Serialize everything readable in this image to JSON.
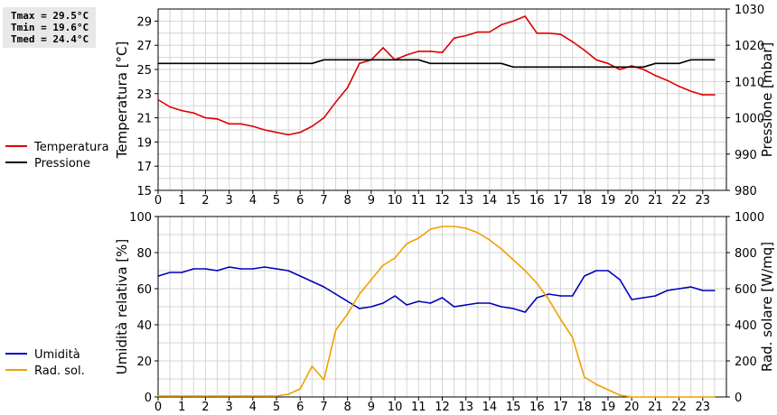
{
  "stats": {
    "tmax": "Tmax = 29.5°C",
    "tmin": "Tmin = 19.6°C",
    "tmed": "Tmed = 24.4°C"
  },
  "colors": {
    "temperature": "#dd0000",
    "pressure": "#000000",
    "humidity": "#0000bb",
    "solar": "#f0a000",
    "grid": "#d4d4d4"
  },
  "chart_data": [
    {
      "type": "line",
      "x_ticks": [
        "0",
        "1",
        "2",
        "3",
        "4",
        "5",
        "6",
        "7",
        "8",
        "9",
        "10",
        "11",
        "12",
        "13",
        "14",
        "15",
        "16",
        "17",
        "18",
        "19",
        "20",
        "21",
        "22",
        "23"
      ],
      "xlim": [
        0,
        24
      ],
      "ylabel": "Temperatura [°C]",
      "y2label": "Pressione [mbar]",
      "ylim": [
        15,
        30
      ],
      "y_ticks": [
        "15",
        "17",
        "19",
        "21",
        "23",
        "25",
        "27",
        "29"
      ],
      "y2lim": [
        980,
        1030
      ],
      "y2_ticks": [
        "980",
        "990",
        "1000",
        "1010",
        "1020",
        "1030"
      ],
      "grid": true,
      "legend_position": "left",
      "series": [
        {
          "name": "Temperatura",
          "axis": "left",
          "x": [
            0,
            0.5,
            1,
            1.5,
            2,
            2.5,
            3,
            3.5,
            4,
            4.5,
            5,
            5.5,
            6,
            6.5,
            7,
            7.5,
            8,
            8.5,
            9,
            9.5,
            10,
            10.5,
            11,
            11.5,
            12,
            12.5,
            13,
            13.5,
            14,
            14.5,
            15,
            15.5,
            16,
            16.5,
            17,
            17.5,
            18,
            18.5,
            19,
            19.5,
            20,
            20.5,
            21,
            21.5,
            22,
            22.5,
            23,
            23.5
          ],
          "values": [
            22.5,
            21.9,
            21.6,
            21.4,
            21.0,
            20.9,
            20.5,
            20.5,
            20.3,
            20.0,
            19.8,
            19.6,
            19.8,
            20.3,
            21.0,
            22.3,
            23.5,
            25.5,
            25.8,
            26.8,
            25.8,
            26.2,
            26.5,
            26.5,
            26.4,
            27.6,
            27.8,
            28.1,
            28.1,
            28.7,
            29.0,
            29.4,
            28.0,
            28.0,
            27.9,
            27.3,
            26.6,
            25.8,
            25.5,
            25.0,
            25.3,
            25.0,
            24.5,
            24.1,
            23.6,
            23.2,
            22.9,
            22.9
          ]
        },
        {
          "name": "Pressione",
          "axis": "right",
          "x": [
            0,
            0.5,
            1,
            1.5,
            2,
            2.5,
            3,
            3.5,
            4,
            4.5,
            5,
            5.5,
            6,
            6.5,
            7,
            7.5,
            8,
            8.5,
            9,
            9.5,
            10,
            10.5,
            11,
            11.5,
            12,
            12.5,
            13,
            13.5,
            14,
            14.5,
            15,
            15.5,
            16,
            16.5,
            17,
            17.5,
            18,
            18.5,
            19,
            19.5,
            20,
            20.5,
            21,
            21.5,
            22,
            22.5,
            23,
            23.5
          ],
          "values": [
            1015,
            1015,
            1015,
            1015,
            1015,
            1015,
            1015,
            1015,
            1015,
            1015,
            1015,
            1015,
            1015,
            1015,
            1016,
            1016,
            1016,
            1016,
            1016,
            1016,
            1016,
            1016,
            1016,
            1015,
            1015,
            1015,
            1015,
            1015,
            1015,
            1015,
            1014,
            1014,
            1014,
            1014,
            1014,
            1014,
            1014,
            1014,
            1014,
            1014,
            1014,
            1014,
            1015,
            1015,
            1015,
            1016,
            1016,
            1016
          ]
        }
      ]
    },
    {
      "type": "line",
      "x_ticks": [
        "0",
        "1",
        "2",
        "3",
        "4",
        "5",
        "6",
        "7",
        "8",
        "9",
        "10",
        "11",
        "12",
        "13",
        "14",
        "15",
        "16",
        "17",
        "18",
        "19",
        "20",
        "21",
        "22",
        "23"
      ],
      "xlim": [
        0,
        24
      ],
      "ylabel": "Umidità relativa [%]",
      "y2label": "Rad. solare [W/mq]",
      "ylim": [
        0,
        100
      ],
      "y_ticks": [
        "0",
        "20",
        "40",
        "60",
        "80",
        "100"
      ],
      "y2lim": [
        0,
        1000
      ],
      "y2_ticks": [
        "0",
        "200",
        "400",
        "600",
        "800",
        "1000"
      ],
      "grid": true,
      "legend_position": "left",
      "series": [
        {
          "name": "Umidità",
          "axis": "left",
          "x": [
            0,
            0.5,
            1,
            1.5,
            2,
            2.5,
            3,
            3.5,
            4,
            4.5,
            5,
            5.5,
            6,
            6.5,
            7,
            7.5,
            8,
            8.5,
            9,
            9.5,
            10,
            10.5,
            11,
            11.5,
            12,
            12.5,
            13,
            13.5,
            14,
            14.5,
            15,
            15.5,
            16,
            16.5,
            17,
            17.5,
            18,
            18.5,
            19,
            19.5,
            20,
            20.5,
            21,
            21.5,
            22,
            22.5,
            23,
            23.5
          ],
          "values": [
            67,
            69,
            69,
            71,
            71,
            70,
            72,
            71,
            71,
            72,
            71,
            70,
            67,
            64,
            61,
            57,
            53,
            49,
            50,
            52,
            56,
            51,
            53,
            52,
            55,
            50,
            51,
            52,
            52,
            50,
            49,
            47,
            55,
            57,
            56,
            56,
            67,
            70,
            70,
            65,
            54,
            55,
            56,
            59,
            60,
            61,
            59,
            59
          ]
        },
        {
          "name": "Rad. sol.",
          "axis": "right",
          "x": [
            0,
            0.5,
            1,
            1.5,
            2,
            2.5,
            3,
            3.5,
            4,
            4.5,
            5,
            5.5,
            6,
            6.5,
            7,
            7.5,
            8,
            8.5,
            9,
            9.5,
            10,
            10.5,
            11,
            11.5,
            12,
            12.5,
            13,
            13.5,
            14,
            14.5,
            15,
            15.5,
            16,
            16.5,
            17,
            17.5,
            18,
            18.5,
            19,
            19.5,
            20,
            20.5,
            21,
            21.5,
            22,
            22.5,
            23,
            23.5
          ],
          "values": [
            5,
            5,
            5,
            5,
            5,
            5,
            5,
            5,
            5,
            5,
            5,
            15,
            45,
            170,
            95,
            370,
            460,
            570,
            650,
            730,
            770,
            850,
            880,
            930,
            945,
            945,
            935,
            910,
            870,
            820,
            760,
            700,
            630,
            540,
            430,
            330,
            110,
            70,
            40,
            10,
            0,
            0,
            0,
            0,
            0,
            0,
            0,
            0
          ]
        }
      ]
    }
  ]
}
